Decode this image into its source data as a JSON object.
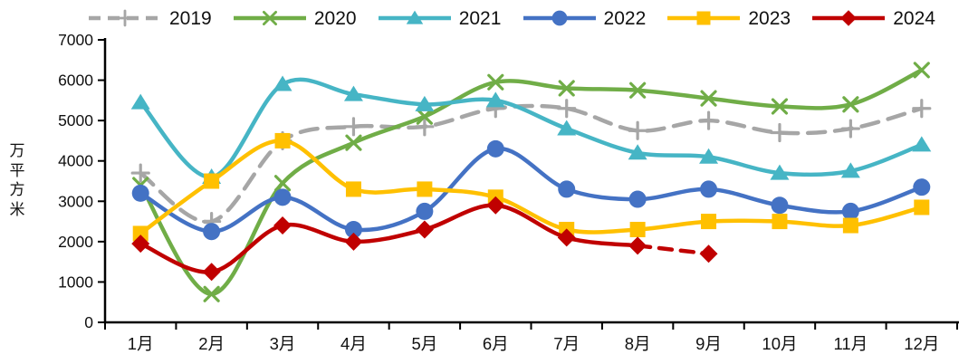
{
  "chart_data": {
    "type": "line",
    "title": "",
    "ylabel": "万平方米",
    "xlabel": "",
    "x_categories": [
      "1月",
      "2月",
      "3月",
      "4月",
      "5月",
      "6月",
      "7月",
      "8月",
      "9月",
      "10月",
      "11月",
      "12月"
    ],
    "y_ticks": [
      0,
      1000,
      2000,
      3000,
      4000,
      5000,
      6000,
      7000
    ],
    "ylim": [
      0,
      7000
    ],
    "grid": "off",
    "legend_position": "top",
    "axis_color": "#000000",
    "series": [
      {
        "name": "2019",
        "color": "#A6A6A6",
        "marker": "plus",
        "line_style": "dashed",
        "values": [
          3700,
          2500,
          4500,
          4850,
          4850,
          5300,
          5300,
          4750,
          5000,
          4700,
          4800,
          5300
        ]
      },
      {
        "name": "2020",
        "color": "#70AD47",
        "marker": "x",
        "line_style": "solid",
        "values": [
          3400,
          700,
          3450,
          4450,
          5100,
          5950,
          5800,
          5750,
          5550,
          5350,
          5400,
          6250
        ]
      },
      {
        "name": "2021",
        "color": "#46B5C5",
        "marker": "triangle",
        "line_style": "solid",
        "values": [
          5450,
          3600,
          5900,
          5650,
          5400,
          5500,
          4800,
          4200,
          4100,
          3700,
          3750,
          4400
        ]
      },
      {
        "name": "2022",
        "color": "#4472C4",
        "marker": "circle",
        "line_style": "solid",
        "values": [
          3200,
          2250,
          3100,
          2300,
          2750,
          4300,
          3300,
          3050,
          3300,
          2900,
          2750,
          3350
        ]
      },
      {
        "name": "2023",
        "color": "#FFC000",
        "marker": "square",
        "line_style": "solid",
        "values": [
          2200,
          3500,
          4500,
          3300,
          3300,
          3100,
          2300,
          2300,
          2500,
          2500,
          2400,
          2850
        ]
      },
      {
        "name": "2024",
        "color": "#C00000",
        "marker": "diamond",
        "line_style": "solid_then_dashed",
        "dashed_segment": [
          "8月",
          "9月"
        ],
        "values": [
          1950,
          1250,
          2400,
          2000,
          2300,
          2900,
          2100,
          1900,
          1700
        ]
      }
    ]
  }
}
